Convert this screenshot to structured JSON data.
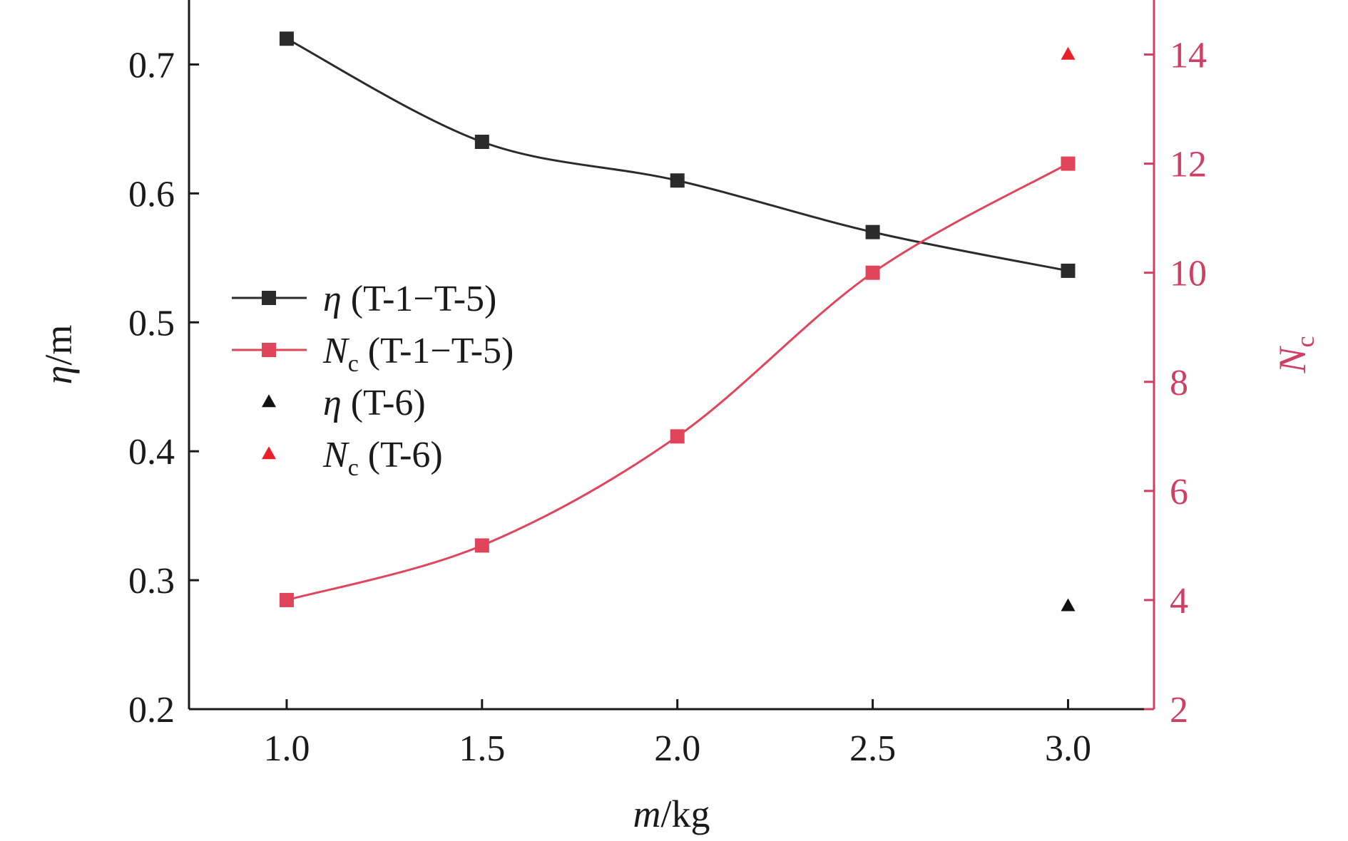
{
  "chart_data": {
    "type": "line",
    "x": [
      1.0,
      1.5,
      2.0,
      2.5,
      3.0
    ],
    "xlabel": {
      "italic": "m",
      "rest": "/kg"
    },
    "ylabel_left": {
      "italic": "η",
      "rest": "/m"
    },
    "ylabel_right": {
      "italic": "N",
      "sub": "c"
    },
    "xlim": [
      0.75,
      3.22
    ],
    "ylim_left": [
      0.2,
      0.75
    ],
    "ylim_right": [
      2,
      15
    ],
    "xticks": [
      "1.0",
      "1.5",
      "2.0",
      "2.5",
      "3.0"
    ],
    "yticks_left": [
      "0.2",
      "0.3",
      "0.4",
      "0.5",
      "0.6",
      "0.7"
    ],
    "yticks_right": [
      "2",
      "4",
      "6",
      "8",
      "10",
      "12",
      "14"
    ],
    "grid": false,
    "legend_position": "center-left",
    "series": [
      {
        "name": "η (T-1−T-5)",
        "axis": "left",
        "marker": "square",
        "color": "#2b2b2b",
        "line": true,
        "x": [
          1.0,
          1.5,
          2.0,
          2.5,
          3.0
        ],
        "values": [
          0.72,
          0.64,
          0.61,
          0.57,
          0.54
        ]
      },
      {
        "name": "Nc (T-1−T-5)",
        "axis": "right",
        "marker": "square",
        "color": "#e0455c",
        "line": true,
        "x": [
          1.0,
          1.5,
          2.0,
          2.5,
          3.0
        ],
        "values": [
          4,
          5,
          7,
          10,
          12
        ]
      },
      {
        "name": "η (T-6)",
        "axis": "left",
        "marker": "triangle",
        "color": "#111111",
        "line": false,
        "x": [
          3.0
        ],
        "values": [
          0.28
        ]
      },
      {
        "name": "Nc (T-6)",
        "axis": "right",
        "marker": "triangle",
        "color": "#e8202a",
        "line": false,
        "x": [
          3.0
        ],
        "values": [
          14
        ]
      }
    ],
    "legend": [
      {
        "symbol": "η",
        "sub": "",
        "rest": " (T-1−T-5)"
      },
      {
        "symbol": "N",
        "sub": "c",
        "rest": " (T-1−T-5)"
      },
      {
        "symbol": "η",
        "sub": "",
        "rest": " (T-6)"
      },
      {
        "symbol": "N",
        "sub": "c",
        "rest": " (T-6)"
      }
    ],
    "colors": {
      "axis": "#1a1a1a",
      "right_axis": "#cf3f63",
      "left_series": "#2b2b2b",
      "right_series": "#e0455c"
    }
  }
}
